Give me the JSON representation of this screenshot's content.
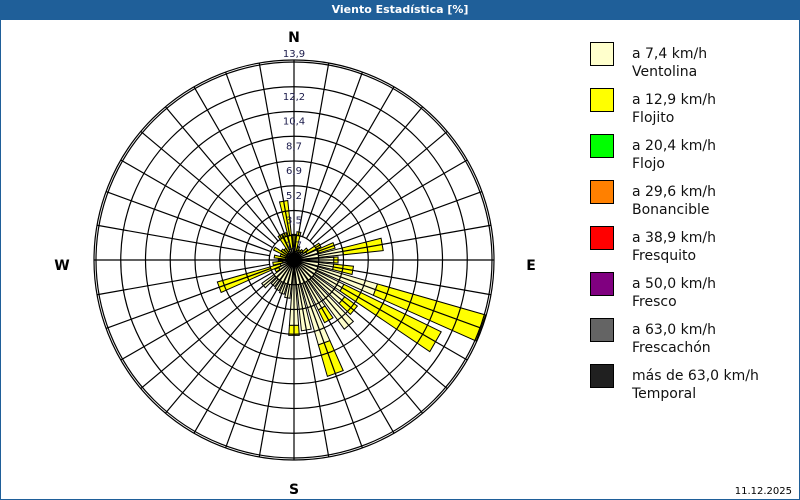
{
  "title": "Viento Estadística [%]",
  "date": "11.12.2025",
  "chart_data": {
    "type": "wind-rose",
    "title": "Viento Estadística [%]",
    "compass": {
      "N": "N",
      "E": "E",
      "S": "S",
      "W": "W"
    },
    "ring_labels": [
      "1,7",
      "3,5",
      "5,2",
      "6,9",
      "8,7",
      "10,4",
      "12,2",
      "13,9"
    ],
    "rmax": 13.9,
    "directions_deg": [
      0,
      10,
      20,
      30,
      40,
      50,
      60,
      70,
      80,
      90,
      100,
      110,
      120,
      130,
      140,
      150,
      160,
      170,
      180,
      190,
      200,
      210,
      220,
      230,
      240,
      250,
      260,
      270,
      280,
      290,
      300,
      310,
      320,
      330,
      340,
      350
    ],
    "series": [
      {
        "name": "Ventolina",
        "color": "#ffffcc",
        "values": [
          0.8,
          0.6,
          0.7,
          0.6,
          0.7,
          0.8,
          1.0,
          1.8,
          3.5,
          2.8,
          2.8,
          6.1,
          3.9,
          4.4,
          6.0,
          3.9,
          6.2,
          5.0,
          4.6,
          2.7,
          2.5,
          2.4,
          2.3,
          2.8,
          1.2,
          1.0,
          0.8,
          0.7,
          0.6,
          0.6,
          0.6,
          0.6,
          0.6,
          0.7,
          0.8,
          0.8
        ]
      },
      {
        "name": "Flojito",
        "color": "#ffff00",
        "values": [
          1.0,
          1.4,
          0.3,
          0.2,
          0.2,
          0.4,
          1.1,
          1.2,
          2.8,
          0.3,
          1.4,
          7.9,
          7.6,
          1.1,
          0.0,
          1.0,
          2.3,
          0.0,
          0.7,
          0.0,
          0.0,
          0.0,
          0.0,
          0.0,
          0.3,
          4.6,
          0.7,
          0.4,
          0.8,
          0.4,
          1.0,
          0.5,
          0.4,
          1.3,
          1.2,
          3.4
        ]
      }
    ],
    "legend": [
      {
        "range": "a 7,4 km/h",
        "name": "Ventolina",
        "color": "#ffffcc"
      },
      {
        "range": "a 12,9 km/h",
        "name": "Flojito",
        "color": "#ffff00"
      },
      {
        "range": "a 20,4 km/h",
        "name": "Flojo",
        "color": "#00ff00"
      },
      {
        "range": "a 29,6 km/h",
        "name": "Bonancible",
        "color": "#ff8000"
      },
      {
        "range": "a 38,9 km/h",
        "name": "Fresquito",
        "color": "#ff0000"
      },
      {
        "range": "a 50,0 km/h",
        "name": "Fresco",
        "color": "#800080"
      },
      {
        "range": "a 63,0 km/h",
        "name": "Frescachón",
        "color": "#646464"
      },
      {
        "range": "más de 63,0 km/h",
        "name": "Temporal",
        "color": "#202020"
      }
    ],
    "legend_position": "right"
  }
}
